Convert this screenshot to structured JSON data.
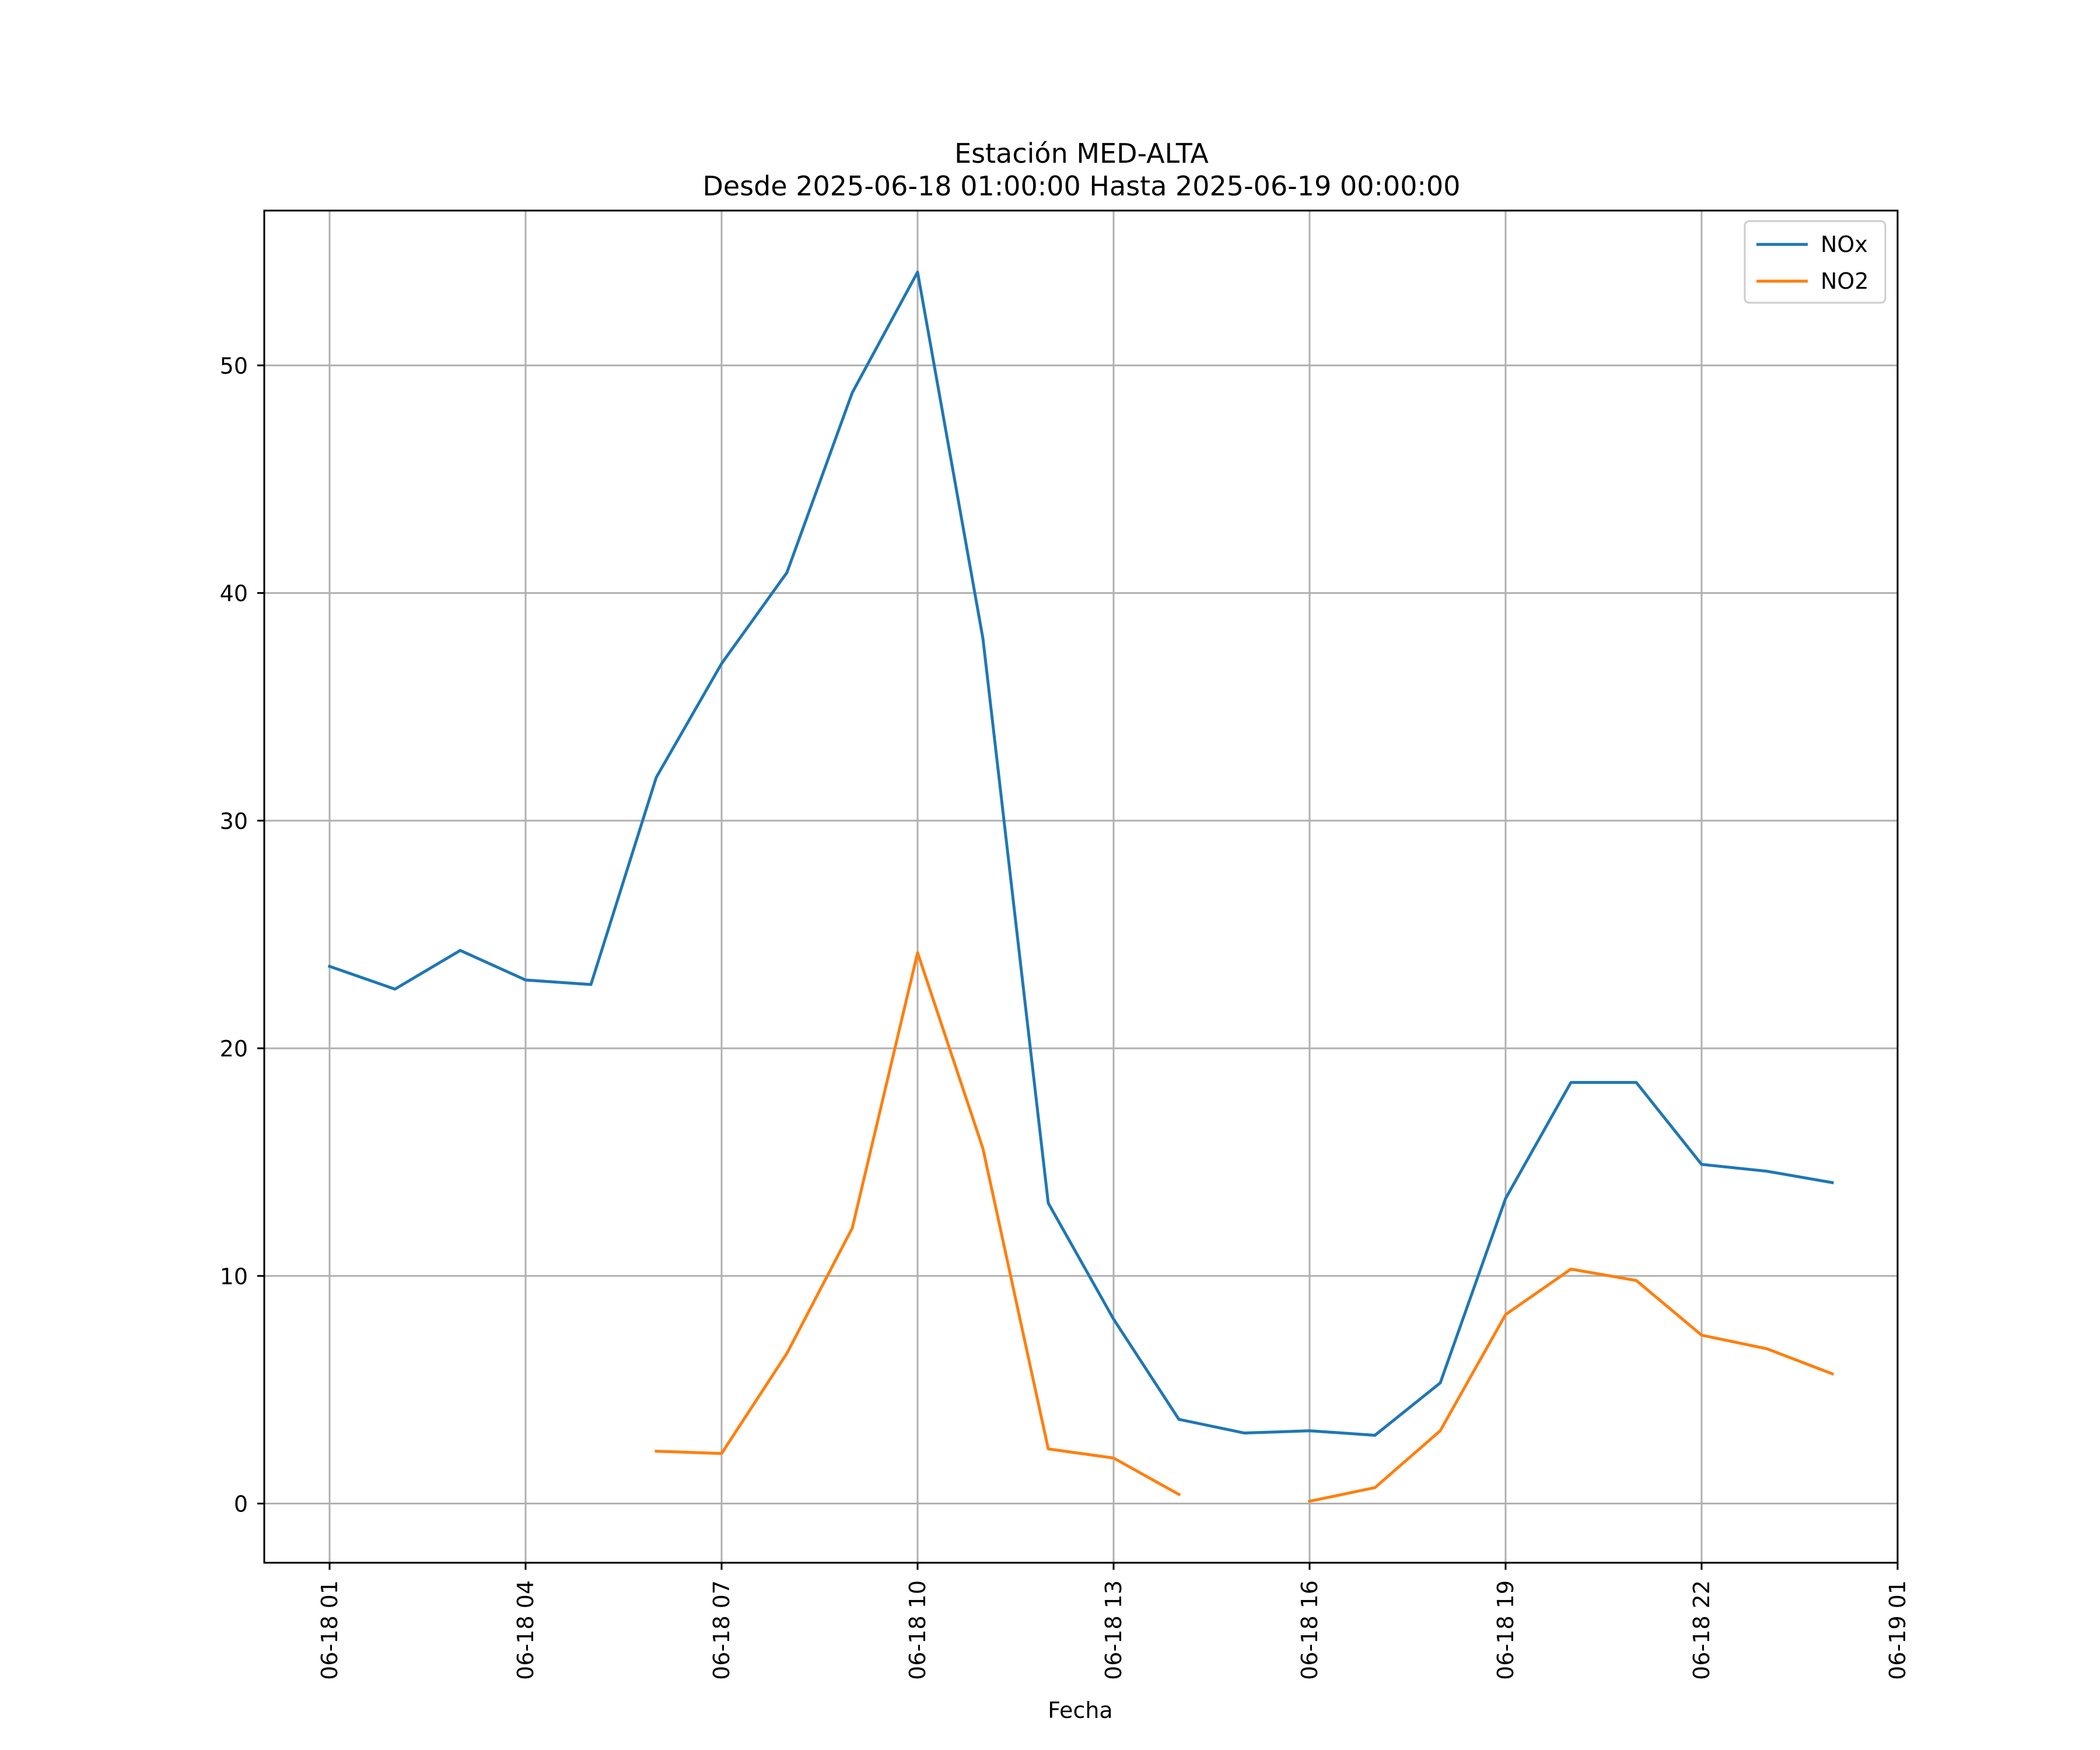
{
  "chart_data": {
    "type": "line",
    "title": "Estación MED-ALTA",
    "subtitle": "Desde 2025-06-18 01:00:00 Hasta 2025-06-19 00:00:00",
    "xlabel": "Fecha",
    "ylabel": "",
    "x_tick_labels": [
      "06-18 01",
      "06-18 04",
      "06-18 07",
      "06-18 10",
      "06-18 13",
      "06-18 16",
      "06-18 19",
      "06-18 22",
      "06-19 01"
    ],
    "y_ticks": [
      0,
      10,
      20,
      30,
      40,
      50
    ],
    "ylim": [
      -2.6,
      56.8
    ],
    "xlim": [
      "2025-06-18 00:00",
      "2025-06-19 01:00"
    ],
    "grid": true,
    "legend_position": "top-right",
    "x": [
      "2025-06-18 01:00",
      "2025-06-18 02:00",
      "2025-06-18 03:00",
      "2025-06-18 04:00",
      "2025-06-18 05:00",
      "2025-06-18 06:00",
      "2025-06-18 07:00",
      "2025-06-18 08:00",
      "2025-06-18 09:00",
      "2025-06-18 10:00",
      "2025-06-18 11:00",
      "2025-06-18 12:00",
      "2025-06-18 13:00",
      "2025-06-18 14:00",
      "2025-06-18 15:00",
      "2025-06-18 16:00",
      "2025-06-18 17:00",
      "2025-06-18 18:00",
      "2025-06-18 19:00",
      "2025-06-18 20:00",
      "2025-06-18 21:00",
      "2025-06-18 22:00",
      "2025-06-18 23:00",
      "2025-06-19 00:00"
    ],
    "series": [
      {
        "name": "NOx",
        "color": "#1f77b4",
        "values": [
          23.6,
          22.6,
          24.3,
          23.0,
          22.8,
          31.9,
          36.9,
          40.9,
          48.8,
          54.1,
          38.0,
          13.2,
          8.1,
          3.7,
          3.1,
          3.2,
          3.0,
          5.3,
          13.4,
          18.5,
          18.5,
          14.9,
          14.6,
          14.1
        ]
      },
      {
        "name": "NO2",
        "color": "#ff7f0e",
        "values": [
          null,
          null,
          null,
          null,
          null,
          2.3,
          2.2,
          6.6,
          12.1,
          24.2,
          15.6,
          2.4,
          2.0,
          0.4,
          null,
          0.1,
          0.7,
          3.2,
          8.3,
          10.3,
          9.8,
          7.4,
          6.8,
          5.7
        ]
      }
    ]
  }
}
